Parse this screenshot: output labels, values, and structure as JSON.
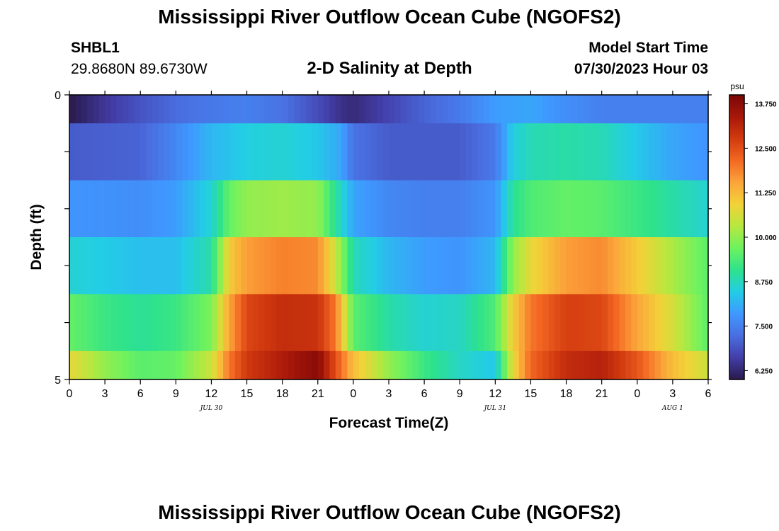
{
  "header": {
    "title": "Mississippi River Outflow Ocean Cube (NGOFS2)",
    "station_id": "SHBL1",
    "station_coords": "29.8680N  89.6730W",
    "subtitle": "2-D Salinity at Depth",
    "model_label": "Model Start Time",
    "model_time": "07/30/2023 Hour 03"
  },
  "footer": {
    "title": "Mississippi River Outflow Ocean Cube (NGOFS2)"
  },
  "chart_data": {
    "type": "heatmap",
    "title": "2-D Salinity at Depth",
    "xlabel": "Forecast Time(Z)",
    "ylabel": "Depth (ft)",
    "x_tick_labels": [
      "0",
      "3",
      "6",
      "9",
      "12",
      "15",
      "18",
      "21",
      "0",
      "3",
      "6",
      "9",
      "12",
      "15",
      "18",
      "21",
      "0",
      "3",
      "6"
    ],
    "x_hours_from_start": [
      0,
      3,
      6,
      9,
      12,
      15,
      18,
      21,
      24,
      27,
      30,
      33,
      36,
      39,
      42,
      45,
      48,
      51,
      54
    ],
    "date_labels": [
      {
        "label": "JUL 30",
        "hour": 12
      },
      {
        "label": "JUL 31",
        "hour": 36
      },
      {
        "label": "AUG 1",
        "hour": 51
      }
    ],
    "y_tick_labels": [
      "0",
      "5"
    ],
    "ylim": [
      0,
      5
    ],
    "layer_depth_bounds_ft": [
      0,
      0.5,
      1.5,
      2.5,
      3.5,
      4.5,
      5
    ],
    "colorbar": {
      "unit": "psu",
      "min": 6.0,
      "max": 14.0,
      "tick_values": [
        6.25,
        7.5,
        8.75,
        10.0,
        11.25,
        12.5,
        13.75
      ],
      "tick_labels": [
        "6.250",
        "7.500",
        "8.750",
        "10.000",
        "11.250",
        "12.500",
        "13.750"
      ],
      "colors": [
        "#2a1a4a",
        "#433ea8",
        "#4a6ee0",
        "#3f98ff",
        "#23cde6",
        "#2ee28c",
        "#6ef25f",
        "#b6e83f",
        "#f2d238",
        "#fba43a",
        "#f36823",
        "#d23a0f",
        "#a8180a",
        "#7a0606"
      ]
    },
    "layers": [
      {
        "depth_ft": 0,
        "profile": [
          {
            "hour": 0,
            "value": 6.0
          },
          {
            "hour": 3,
            "value": 6.5
          },
          {
            "hour": 6,
            "value": 6.9
          },
          {
            "hour": 9,
            "value": 7.2
          },
          {
            "hour": 12,
            "value": 7.4
          },
          {
            "hour": 15,
            "value": 7.5
          },
          {
            "hour": 18,
            "value": 7.3
          },
          {
            "hour": 21,
            "value": 6.8
          },
          {
            "hour": 23,
            "value": 6.4
          },
          {
            "hour": 24,
            "value": 6.3
          },
          {
            "hour": 27,
            "value": 6.7
          },
          {
            "hour": 30,
            "value": 7.1
          },
          {
            "hour": 33,
            "value": 7.4
          },
          {
            "hour": 36,
            "value": 7.9
          },
          {
            "hour": 39,
            "value": 8.0
          },
          {
            "hour": 42,
            "value": 7.7
          },
          {
            "hour": 45,
            "value": 7.5
          },
          {
            "hour": 48,
            "value": 7.5
          },
          {
            "hour": 51,
            "value": 7.5
          },
          {
            "hour": 54,
            "value": 7.5
          }
        ]
      },
      {
        "depth_ft": 1,
        "profile": [
          {
            "hour": 0,
            "value": 7.0
          },
          {
            "hour": 6,
            "value": 7.1
          },
          {
            "hour": 9,
            "value": 7.6
          },
          {
            "hour": 12,
            "value": 8.2
          },
          {
            "hour": 15,
            "value": 8.5
          },
          {
            "hour": 18,
            "value": 8.6
          },
          {
            "hour": 21,
            "value": 8.4
          },
          {
            "hour": 23,
            "value": 8.0
          },
          {
            "hour": 24,
            "value": 7.3
          },
          {
            "hour": 27,
            "value": 7.0
          },
          {
            "hour": 33,
            "value": 7.0
          },
          {
            "hour": 36,
            "value": 7.4
          },
          {
            "hour": 37.5,
            "value": 8.5
          },
          {
            "hour": 39,
            "value": 8.8
          },
          {
            "hour": 42,
            "value": 8.9
          },
          {
            "hour": 45,
            "value": 8.8
          },
          {
            "hour": 48,
            "value": 8.4
          },
          {
            "hour": 51,
            "value": 8.0
          },
          {
            "hour": 54,
            "value": 7.8
          }
        ]
      },
      {
        "depth_ft": 2,
        "profile": [
          {
            "hour": 0,
            "value": 7.8
          },
          {
            "hour": 6,
            "value": 7.7
          },
          {
            "hour": 9,
            "value": 7.9
          },
          {
            "hour": 12,
            "value": 8.6
          },
          {
            "hour": 13.5,
            "value": 9.6
          },
          {
            "hour": 15,
            "value": 10.0
          },
          {
            "hour": 18,
            "value": 10.1
          },
          {
            "hour": 21,
            "value": 10.0
          },
          {
            "hour": 22.5,
            "value": 9.0
          },
          {
            "hour": 24,
            "value": 8.0
          },
          {
            "hour": 27,
            "value": 7.6
          },
          {
            "hour": 30,
            "value": 7.5
          },
          {
            "hour": 33,
            "value": 7.5
          },
          {
            "hour": 36,
            "value": 7.8
          },
          {
            "hour": 37.5,
            "value": 9.0
          },
          {
            "hour": 39,
            "value": 9.4
          },
          {
            "hour": 42,
            "value": 9.6
          },
          {
            "hour": 45,
            "value": 9.5
          },
          {
            "hour": 48,
            "value": 9.2
          },
          {
            "hour": 51,
            "value": 8.9
          },
          {
            "hour": 54,
            "value": 8.6
          }
        ]
      },
      {
        "depth_ft": 3,
        "profile": [
          {
            "hour": 0,
            "value": 8.6
          },
          {
            "hour": 6,
            "value": 8.3
          },
          {
            "hour": 9,
            "value": 8.3
          },
          {
            "hour": 12,
            "value": 8.9
          },
          {
            "hour": 13.5,
            "value": 11.0
          },
          {
            "hour": 15,
            "value": 11.6
          },
          {
            "hour": 18,
            "value": 11.9
          },
          {
            "hour": 21,
            "value": 11.8
          },
          {
            "hour": 22.5,
            "value": 10.5
          },
          {
            "hour": 24,
            "value": 8.8
          },
          {
            "hour": 27,
            "value": 8.2
          },
          {
            "hour": 30,
            "value": 7.9
          },
          {
            "hour": 33,
            "value": 7.8
          },
          {
            "hour": 36,
            "value": 8.2
          },
          {
            "hour": 37.5,
            "value": 10.0
          },
          {
            "hour": 39,
            "value": 10.8
          },
          {
            "hour": 42,
            "value": 11.6
          },
          {
            "hour": 45,
            "value": 11.8
          },
          {
            "hour": 48,
            "value": 11.0
          },
          {
            "hour": 51,
            "value": 10.2
          },
          {
            "hour": 54,
            "value": 9.5
          }
        ]
      },
      {
        "depth_ft": 4,
        "profile": [
          {
            "hour": 0,
            "value": 9.6
          },
          {
            "hour": 3,
            "value": 9.2
          },
          {
            "hour": 6,
            "value": 9.0
          },
          {
            "hour": 9,
            "value": 9.2
          },
          {
            "hour": 12,
            "value": 9.8
          },
          {
            "hour": 13.5,
            "value": 11.5
          },
          {
            "hour": 15,
            "value": 12.6
          },
          {
            "hour": 18,
            "value": 13.0
          },
          {
            "hour": 21,
            "value": 12.9
          },
          {
            "hour": 22.5,
            "value": 12.0
          },
          {
            "hour": 24,
            "value": 9.5
          },
          {
            "hour": 27,
            "value": 8.9
          },
          {
            "hour": 30,
            "value": 8.6
          },
          {
            "hour": 33,
            "value": 8.7
          },
          {
            "hour": 36,
            "value": 9.4
          },
          {
            "hour": 37.5,
            "value": 11.0
          },
          {
            "hour": 39,
            "value": 12.0
          },
          {
            "hour": 42,
            "value": 12.7
          },
          {
            "hour": 45,
            "value": 12.6
          },
          {
            "hour": 48,
            "value": 11.5
          },
          {
            "hour": 51,
            "value": 10.6
          },
          {
            "hour": 54,
            "value": 9.5
          }
        ]
      },
      {
        "depth_ft": 5,
        "profile": [
          {
            "hour": 0,
            "value": 10.8
          },
          {
            "hour": 3,
            "value": 10.0
          },
          {
            "hour": 6,
            "value": 9.5
          },
          {
            "hour": 9,
            "value": 9.6
          },
          {
            "hour": 12,
            "value": 10.5
          },
          {
            "hour": 13.5,
            "value": 12.0
          },
          {
            "hour": 15,
            "value": 12.8
          },
          {
            "hour": 18,
            "value": 13.3
          },
          {
            "hour": 21,
            "value": 13.8
          },
          {
            "hour": 22.5,
            "value": 12.5
          },
          {
            "hour": 24,
            "value": 11.2
          },
          {
            "hour": 27,
            "value": 10.0
          },
          {
            "hour": 30,
            "value": 9.2
          },
          {
            "hour": 33,
            "value": 8.7
          },
          {
            "hour": 36,
            "value": 8.4
          },
          {
            "hour": 37.5,
            "value": 10.8
          },
          {
            "hour": 39,
            "value": 12.2
          },
          {
            "hour": 42,
            "value": 13.0
          },
          {
            "hour": 45,
            "value": 13.2
          },
          {
            "hour": 48,
            "value": 12.4
          },
          {
            "hour": 51,
            "value": 11.2
          },
          {
            "hour": 54,
            "value": 10.5
          }
        ]
      }
    ]
  }
}
